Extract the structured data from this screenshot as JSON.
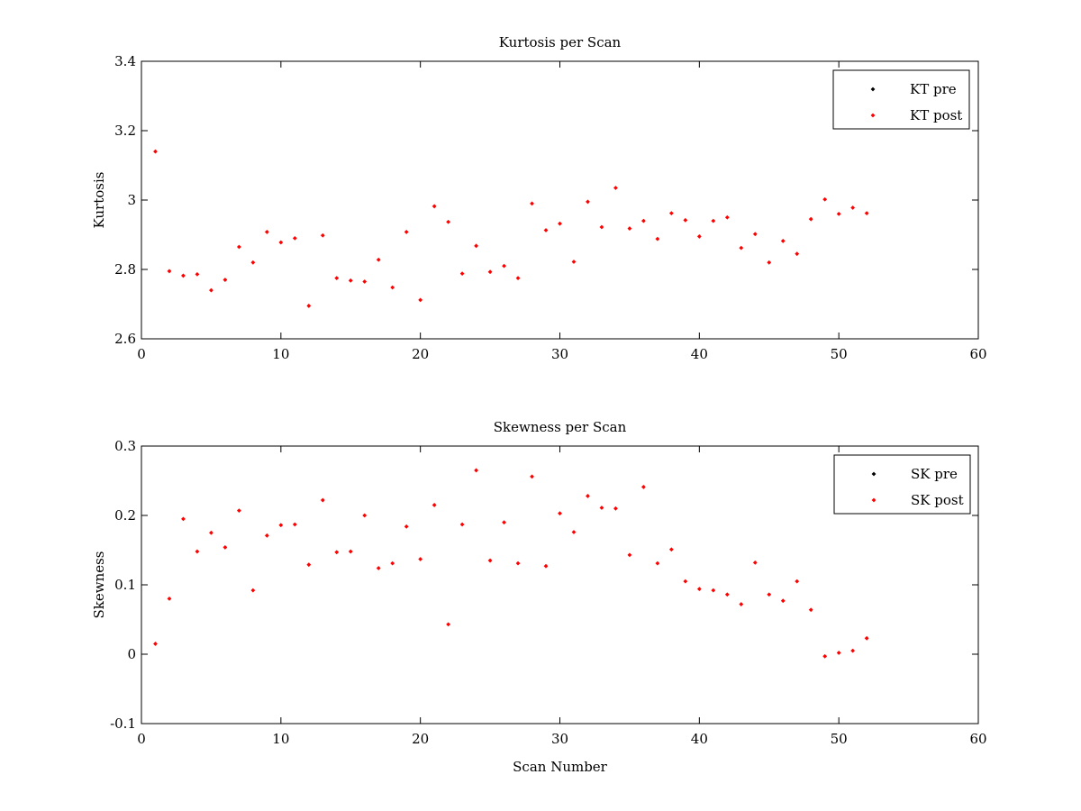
{
  "colors": {
    "pre": "#000000",
    "post": "#ff0000"
  },
  "chart_data": [
    {
      "type": "scatter",
      "title": "Kurtosis per Scan",
      "xlabel": "",
      "ylabel": "Kurtosis",
      "xlim": [
        0,
        60
      ],
      "ylim": [
        2.6,
        3.4
      ],
      "xticks": [
        0,
        10,
        20,
        30,
        40,
        50,
        60
      ],
      "yticks": [
        2.6,
        2.8,
        3.0,
        3.2,
        3.4
      ],
      "xtick_labels": [
        "0",
        "10",
        "20",
        "30",
        "40",
        "50",
        "60"
      ],
      "ytick_labels": [
        "2.6",
        "2.8",
        "3",
        "3.2",
        "3.4"
      ],
      "legend_position": "top-right",
      "series": [
        {
          "name": "KT pre",
          "color": "#000000",
          "x": [],
          "y": []
        },
        {
          "name": "KT post",
          "color": "#ff0000",
          "x": [
            1,
            2,
            3,
            4,
            5,
            6,
            7,
            8,
            9,
            10,
            11,
            12,
            13,
            14,
            15,
            16,
            17,
            18,
            19,
            20,
            21,
            22,
            23,
            24,
            25,
            26,
            27,
            28,
            29,
            30,
            31,
            32,
            33,
            34,
            35,
            36,
            37,
            38,
            39,
            40,
            41,
            42,
            43,
            44,
            45,
            46,
            47,
            48,
            49,
            50,
            51,
            52
          ],
          "y": [
            3.14,
            2.795,
            2.782,
            2.786,
            2.74,
            2.77,
            2.865,
            2.82,
            2.908,
            2.878,
            2.89,
            2.695,
            2.898,
            2.775,
            2.768,
            2.765,
            2.828,
            2.748,
            2.908,
            2.712,
            2.982,
            2.937,
            2.788,
            2.868,
            2.793,
            2.81,
            2.775,
            2.99,
            2.913,
            2.932,
            2.822,
            2.995,
            2.922,
            3.035,
            2.918,
            2.94,
            2.888,
            2.962,
            2.942,
            2.895,
            2.94,
            2.95,
            2.862,
            2.902,
            2.82,
            2.882,
            2.845,
            2.945,
            3.002,
            2.96,
            2.978,
            2.962
          ]
        }
      ]
    },
    {
      "type": "scatter",
      "title": "Skewness per Scan",
      "xlabel": "Scan Number",
      "ylabel": "Skewness",
      "xlim": [
        0,
        60
      ],
      "ylim": [
        -0.1,
        0.3
      ],
      "xticks": [
        0,
        10,
        20,
        30,
        40,
        50,
        60
      ],
      "yticks": [
        -0.1,
        0,
        0.1,
        0.2,
        0.3
      ],
      "xtick_labels": [
        "0",
        "10",
        "20",
        "30",
        "40",
        "50",
        "60"
      ],
      "ytick_labels": [
        "-0.1",
        "0",
        "0.1",
        "0.2",
        "0.3"
      ],
      "legend_position": "top-right",
      "series": [
        {
          "name": "SK pre",
          "color": "#000000",
          "x": [],
          "y": []
        },
        {
          "name": "SK post",
          "color": "#ff0000",
          "x": [
            1,
            2,
            3,
            4,
            5,
            6,
            7,
            8,
            9,
            10,
            11,
            12,
            13,
            14,
            15,
            16,
            17,
            18,
            19,
            20,
            21,
            22,
            23,
            24,
            25,
            26,
            27,
            28,
            29,
            30,
            31,
            32,
            33,
            34,
            35,
            36,
            37,
            38,
            39,
            40,
            41,
            42,
            43,
            44,
            45,
            46,
            47,
            48,
            49,
            50,
            51,
            52
          ],
          "y": [
            0.015,
            0.08,
            0.195,
            0.148,
            0.175,
            0.154,
            0.207,
            0.092,
            0.171,
            0.186,
            0.187,
            0.129,
            0.222,
            0.147,
            0.148,
            0.2,
            0.124,
            0.131,
            0.184,
            0.137,
            0.215,
            0.043,
            0.187,
            0.265,
            0.135,
            0.19,
            0.131,
            0.256,
            0.127,
            0.203,
            0.176,
            0.228,
            0.211,
            0.21,
            0.143,
            0.241,
            0.131,
            0.151,
            0.105,
            0.094,
            0.092,
            0.086,
            0.072,
            0.132,
            0.086,
            0.077,
            0.105,
            0.064,
            -0.003,
            0.002,
            0.005,
            0.023
          ]
        }
      ]
    }
  ]
}
